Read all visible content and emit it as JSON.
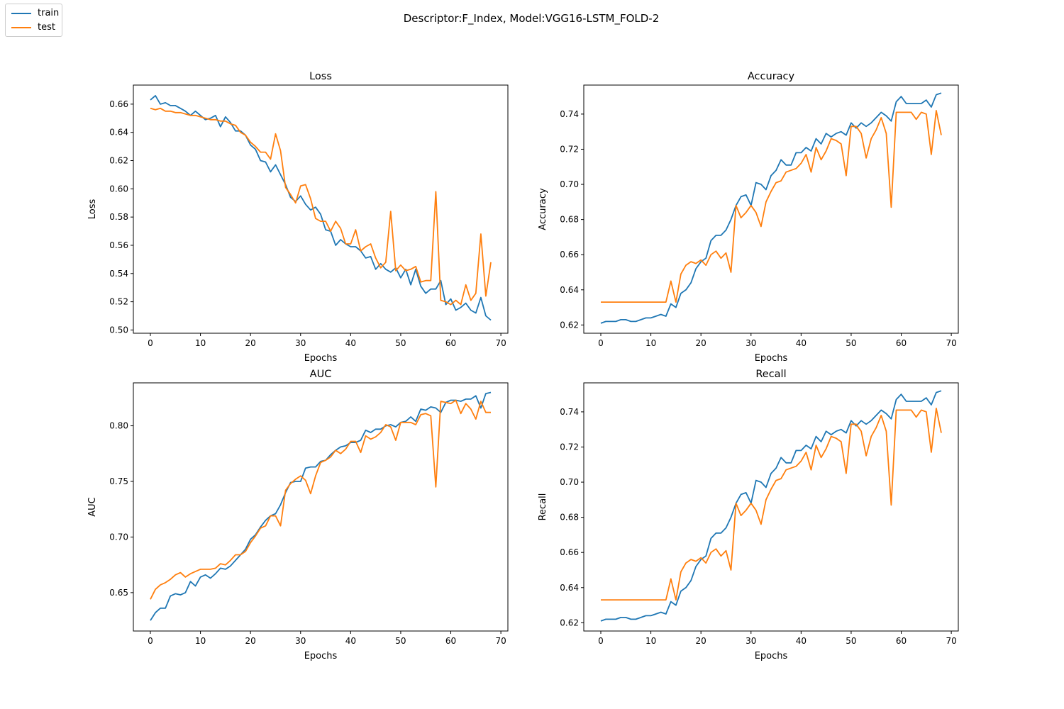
{
  "figure": {
    "suptitle": "Descriptor:F_Index, Model:VGG16-LSTM_FOLD-2"
  },
  "legend": {
    "placement": "top-left",
    "items": [
      {
        "label": "train",
        "color": "#1f77b4"
      },
      {
        "label": "test",
        "color": "#ff7f0e"
      }
    ]
  },
  "chart_data": [
    {
      "type": "line",
      "title": "Loss",
      "xlabel": "Epochs",
      "ylabel": "Loss",
      "xlim": [
        -3.4,
        71.4
      ],
      "ylim": [
        0.4977,
        0.6735
      ],
      "xticks": [
        0,
        10,
        20,
        30,
        40,
        50,
        60,
        70
      ],
      "yticks": [
        0.5,
        0.52,
        0.54,
        0.56,
        0.58,
        0.6,
        0.62,
        0.64,
        0.66
      ],
      "ytick_labels": [
        "0.50",
        "0.52",
        "0.54",
        "0.56",
        "0.58",
        "0.60",
        "0.62",
        "0.64",
        "0.66"
      ],
      "series": [
        {
          "name": "train",
          "color": "#1f77b4",
          "values": [
            0.663,
            0.666,
            0.66,
            0.661,
            0.659,
            0.659,
            0.657,
            0.655,
            0.652,
            0.655,
            0.652,
            0.649,
            0.65,
            0.652,
            0.644,
            0.651,
            0.647,
            0.641,
            0.641,
            0.638,
            0.631,
            0.628,
            0.62,
            0.619,
            0.612,
            0.617,
            0.61,
            0.603,
            0.594,
            0.591,
            0.595,
            0.589,
            0.585,
            0.587,
            0.582,
            0.571,
            0.57,
            0.56,
            0.564,
            0.561,
            0.559,
            0.559,
            0.556,
            0.551,
            0.552,
            0.543,
            0.547,
            0.543,
            0.541,
            0.544,
            0.537,
            0.543,
            0.532,
            0.543,
            0.531,
            0.526,
            0.529,
            0.529,
            0.535,
            0.518,
            0.522,
            0.514,
            0.516,
            0.519,
            0.514,
            0.512,
            0.523,
            0.51,
            0.507
          ]
        },
        {
          "name": "test",
          "color": "#ff7f0e",
          "values": [
            0.657,
            0.656,
            0.657,
            0.655,
            0.655,
            0.654,
            0.654,
            0.653,
            0.652,
            0.652,
            0.651,
            0.65,
            0.649,
            0.649,
            0.648,
            0.648,
            0.646,
            0.645,
            0.64,
            0.638,
            0.633,
            0.63,
            0.626,
            0.626,
            0.621,
            0.639,
            0.627,
            0.601,
            0.596,
            0.59,
            0.602,
            0.603,
            0.593,
            0.579,
            0.577,
            0.577,
            0.57,
            0.577,
            0.572,
            0.561,
            0.561,
            0.571,
            0.556,
            0.559,
            0.561,
            0.551,
            0.544,
            0.548,
            0.584,
            0.542,
            0.546,
            0.542,
            0.543,
            0.545,
            0.534,
            0.535,
            0.535,
            0.598,
            0.521,
            0.52,
            0.518,
            0.521,
            0.518,
            0.532,
            0.521,
            0.526,
            0.568,
            0.524,
            0.548
          ]
        }
      ]
    },
    {
      "type": "line",
      "title": "Accuracy",
      "xlabel": "Epochs",
      "ylabel": "Accuracy",
      "xlim": [
        -3.4,
        71.4
      ],
      "ylim": [
        0.6153,
        0.7565
      ],
      "xticks": [
        0,
        10,
        20,
        30,
        40,
        50,
        60,
        70
      ],
      "yticks": [
        0.62,
        0.64,
        0.66,
        0.68,
        0.7,
        0.72,
        0.74
      ],
      "ytick_labels": [
        "0.62",
        "0.64",
        "0.66",
        "0.68",
        "0.70",
        "0.72",
        "0.74"
      ],
      "series": [
        {
          "name": "train",
          "color": "#1f77b4",
          "values": [
            0.621,
            0.622,
            0.622,
            0.622,
            0.623,
            0.623,
            0.622,
            0.622,
            0.623,
            0.624,
            0.624,
            0.625,
            0.626,
            0.625,
            0.632,
            0.63,
            0.638,
            0.64,
            0.644,
            0.652,
            0.656,
            0.658,
            0.668,
            0.671,
            0.671,
            0.674,
            0.68,
            0.688,
            0.693,
            0.694,
            0.688,
            0.701,
            0.7,
            0.697,
            0.705,
            0.708,
            0.714,
            0.711,
            0.711,
            0.718,
            0.718,
            0.721,
            0.719,
            0.726,
            0.723,
            0.729,
            0.727,
            0.729,
            0.73,
            0.728,
            0.735,
            0.732,
            0.735,
            0.733,
            0.735,
            0.738,
            0.741,
            0.739,
            0.736,
            0.747,
            0.75,
            0.746,
            0.746,
            0.746,
            0.746,
            0.748,
            0.744,
            0.751,
            0.752
          ]
        },
        {
          "name": "test",
          "color": "#ff7f0e",
          "values": [
            0.633,
            0.633,
            0.633,
            0.633,
            0.633,
            0.633,
            0.633,
            0.633,
            0.633,
            0.633,
            0.633,
            0.633,
            0.633,
            0.633,
            0.645,
            0.633,
            0.649,
            0.654,
            0.656,
            0.655,
            0.657,
            0.654,
            0.66,
            0.662,
            0.658,
            0.661,
            0.65,
            0.688,
            0.681,
            0.684,
            0.688,
            0.684,
            0.676,
            0.69,
            0.696,
            0.701,
            0.702,
            0.707,
            0.708,
            0.709,
            0.712,
            0.717,
            0.707,
            0.721,
            0.714,
            0.719,
            0.726,
            0.725,
            0.723,
            0.705,
            0.733,
            0.733,
            0.729,
            0.715,
            0.726,
            0.731,
            0.738,
            0.729,
            0.687,
            0.741,
            0.741,
            0.741,
            0.741,
            0.737,
            0.741,
            0.74,
            0.717,
            0.742,
            0.728
          ]
        }
      ]
    },
    {
      "type": "line",
      "title": "AUC",
      "xlabel": "Epochs",
      "ylabel": "AUC",
      "xlim": [
        -3.4,
        71.4
      ],
      "ylim": [
        0.6155,
        0.8386
      ],
      "xticks": [
        0,
        10,
        20,
        30,
        40,
        50,
        60,
        70
      ],
      "yticks": [
        0.65,
        0.7,
        0.75,
        0.8
      ],
      "ytick_labels": [
        "0.65",
        "0.70",
        "0.75",
        "0.80"
      ],
      "series": [
        {
          "name": "train",
          "color": "#1f77b4",
          "values": [
            0.625,
            0.632,
            0.636,
            0.636,
            0.647,
            0.649,
            0.648,
            0.65,
            0.66,
            0.656,
            0.664,
            0.666,
            0.663,
            0.667,
            0.672,
            0.671,
            0.674,
            0.679,
            0.684,
            0.689,
            0.698,
            0.702,
            0.709,
            0.715,
            0.719,
            0.721,
            0.729,
            0.74,
            0.749,
            0.75,
            0.75,
            0.762,
            0.763,
            0.763,
            0.768,
            0.769,
            0.774,
            0.778,
            0.781,
            0.782,
            0.785,
            0.785,
            0.787,
            0.796,
            0.794,
            0.797,
            0.797,
            0.8,
            0.801,
            0.799,
            0.803,
            0.804,
            0.808,
            0.804,
            0.815,
            0.814,
            0.817,
            0.816,
            0.812,
            0.821,
            0.823,
            0.823,
            0.822,
            0.824,
            0.824,
            0.827,
            0.816,
            0.829,
            0.83
          ]
        },
        {
          "name": "test",
          "color": "#ff7f0e",
          "values": [
            0.644,
            0.653,
            0.657,
            0.659,
            0.662,
            0.666,
            0.668,
            0.664,
            0.667,
            0.669,
            0.671,
            0.671,
            0.671,
            0.672,
            0.676,
            0.675,
            0.679,
            0.684,
            0.684,
            0.687,
            0.695,
            0.701,
            0.708,
            0.71,
            0.719,
            0.719,
            0.71,
            0.742,
            0.748,
            0.752,
            0.755,
            0.751,
            0.739,
            0.755,
            0.767,
            0.769,
            0.772,
            0.778,
            0.775,
            0.779,
            0.786,
            0.786,
            0.776,
            0.791,
            0.788,
            0.79,
            0.794,
            0.801,
            0.799,
            0.787,
            0.803,
            0.803,
            0.803,
            0.801,
            0.81,
            0.811,
            0.809,
            0.745,
            0.822,
            0.821,
            0.82,
            0.823,
            0.811,
            0.82,
            0.815,
            0.806,
            0.822,
            0.812,
            0.812
          ]
        }
      ]
    },
    {
      "type": "line",
      "title": "Recall",
      "xlabel": "Epochs",
      "ylabel": "Recall",
      "xlim": [
        -3.4,
        71.4
      ],
      "ylim": [
        0.6153,
        0.7565
      ],
      "xticks": [
        0,
        10,
        20,
        30,
        40,
        50,
        60,
        70
      ],
      "yticks": [
        0.62,
        0.64,
        0.66,
        0.68,
        0.7,
        0.72,
        0.74
      ],
      "ytick_labels": [
        "0.62",
        "0.64",
        "0.66",
        "0.68",
        "0.70",
        "0.72",
        "0.74"
      ],
      "series": [
        {
          "name": "train",
          "color": "#1f77b4",
          "values": [
            0.621,
            0.622,
            0.622,
            0.622,
            0.623,
            0.623,
            0.622,
            0.622,
            0.623,
            0.624,
            0.624,
            0.625,
            0.626,
            0.625,
            0.632,
            0.63,
            0.638,
            0.64,
            0.644,
            0.652,
            0.656,
            0.658,
            0.668,
            0.671,
            0.671,
            0.674,
            0.68,
            0.688,
            0.693,
            0.694,
            0.688,
            0.701,
            0.7,
            0.697,
            0.705,
            0.708,
            0.714,
            0.711,
            0.711,
            0.718,
            0.718,
            0.721,
            0.719,
            0.726,
            0.723,
            0.729,
            0.727,
            0.729,
            0.73,
            0.728,
            0.735,
            0.732,
            0.735,
            0.733,
            0.735,
            0.738,
            0.741,
            0.739,
            0.736,
            0.747,
            0.75,
            0.746,
            0.746,
            0.746,
            0.746,
            0.748,
            0.744,
            0.751,
            0.752
          ]
        },
        {
          "name": "test",
          "color": "#ff7f0e",
          "values": [
            0.633,
            0.633,
            0.633,
            0.633,
            0.633,
            0.633,
            0.633,
            0.633,
            0.633,
            0.633,
            0.633,
            0.633,
            0.633,
            0.633,
            0.645,
            0.633,
            0.649,
            0.654,
            0.656,
            0.655,
            0.657,
            0.654,
            0.66,
            0.662,
            0.658,
            0.661,
            0.65,
            0.688,
            0.681,
            0.684,
            0.688,
            0.684,
            0.676,
            0.69,
            0.696,
            0.701,
            0.702,
            0.707,
            0.708,
            0.709,
            0.712,
            0.717,
            0.707,
            0.721,
            0.714,
            0.719,
            0.726,
            0.725,
            0.723,
            0.705,
            0.733,
            0.733,
            0.729,
            0.715,
            0.726,
            0.731,
            0.738,
            0.729,
            0.687,
            0.741,
            0.741,
            0.741,
            0.741,
            0.737,
            0.741,
            0.74,
            0.717,
            0.742,
            0.728
          ]
        }
      ]
    }
  ]
}
